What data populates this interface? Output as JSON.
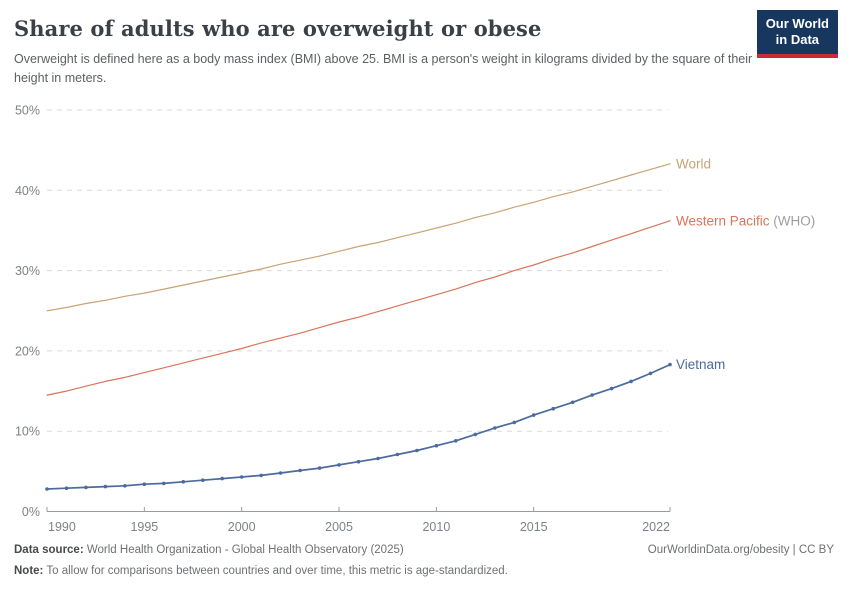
{
  "header": {
    "title": "Share of adults who are overweight or obese",
    "subtitle": "Overweight is defined here as a body mass index (BMI) above 25. BMI is a person's weight in kilograms divided by the square of their height in meters.",
    "logo": {
      "line1": "Our World",
      "line2": "in Data",
      "bg_color": "#18375f",
      "stripe_color": "#c62d3c"
    }
  },
  "chart_data": {
    "type": "line",
    "title": "Share of adults who are overweight or obese",
    "xlabel": "",
    "ylabel": "",
    "xlim": [
      1990,
      2022
    ],
    "ylim": [
      0,
      50
    ],
    "x_ticks": [
      1990,
      1995,
      2000,
      2005,
      2010,
      2015,
      2022
    ],
    "y_ticks": [
      0,
      10,
      20,
      30,
      40,
      50
    ],
    "y_tick_suffix": "%",
    "grid": "dashed-horizontal",
    "legend_position": "right-of-line-ends",
    "grid_color": "#dadada",
    "axis_color": "#9b9b9b",
    "tick_label_color": "#7d8287",
    "x": [
      1990,
      1991,
      1992,
      1993,
      1994,
      1995,
      1996,
      1997,
      1998,
      1999,
      2000,
      2001,
      2002,
      2003,
      2004,
      2005,
      2006,
      2007,
      2008,
      2009,
      2010,
      2011,
      2012,
      2013,
      2014,
      2015,
      2016,
      2017,
      2018,
      2019,
      2020,
      2021,
      2022
    ],
    "series": [
      {
        "name": "World",
        "label": "World",
        "label_suffix": "",
        "color": "#c8a376",
        "markers": false,
        "line_width": 1.2,
        "values": [
          25.0,
          25.4,
          25.9,
          26.3,
          26.8,
          27.2,
          27.7,
          28.2,
          28.7,
          29.2,
          29.7,
          30.2,
          30.8,
          31.3,
          31.8,
          32.4,
          33.0,
          33.5,
          34.1,
          34.7,
          35.3,
          35.9,
          36.6,
          37.2,
          37.9,
          38.5,
          39.2,
          39.8,
          40.5,
          41.2,
          41.9,
          42.6,
          43.3
        ]
      },
      {
        "name": "Western Pacific (WHO)",
        "label": "Western Pacific",
        "label_suffix": " (WHO)",
        "color": "#d8755b",
        "suffix_color": "#9e9e9e",
        "markers": false,
        "line_width": 1.2,
        "values": [
          14.5,
          15.0,
          15.6,
          16.2,
          16.7,
          17.3,
          17.9,
          18.5,
          19.1,
          19.7,
          20.3,
          21.0,
          21.6,
          22.2,
          22.9,
          23.6,
          24.2,
          24.9,
          25.6,
          26.3,
          27.0,
          27.7,
          28.5,
          29.2,
          30.0,
          30.7,
          31.5,
          32.2,
          33.0,
          33.8,
          34.6,
          35.4,
          36.2
        ]
      },
      {
        "name": "Vietnam",
        "label": "Vietnam",
        "label_suffix": "",
        "color": "#4c6a9c",
        "markers": true,
        "line_width": 1.7,
        "values": [
          2.8,
          2.9,
          3.0,
          3.1,
          3.2,
          3.4,
          3.5,
          3.7,
          3.9,
          4.1,
          4.3,
          4.5,
          4.8,
          5.1,
          5.4,
          5.8,
          6.2,
          6.6,
          7.1,
          7.6,
          8.2,
          8.8,
          9.6,
          10.4,
          11.1,
          12.0,
          12.8,
          13.6,
          14.5,
          15.3,
          16.2,
          17.2,
          18.3
        ]
      }
    ]
  },
  "footer": {
    "data_source_label": "Data source:",
    "data_source_text": " World Health Organization - Global Health Observatory (2025)",
    "link_text": "OurWorldinData.org/obesity | CC BY",
    "note_label": "Note:",
    "note_text": " To allow for comparisons between countries and over time, this metric is age-standardized."
  }
}
